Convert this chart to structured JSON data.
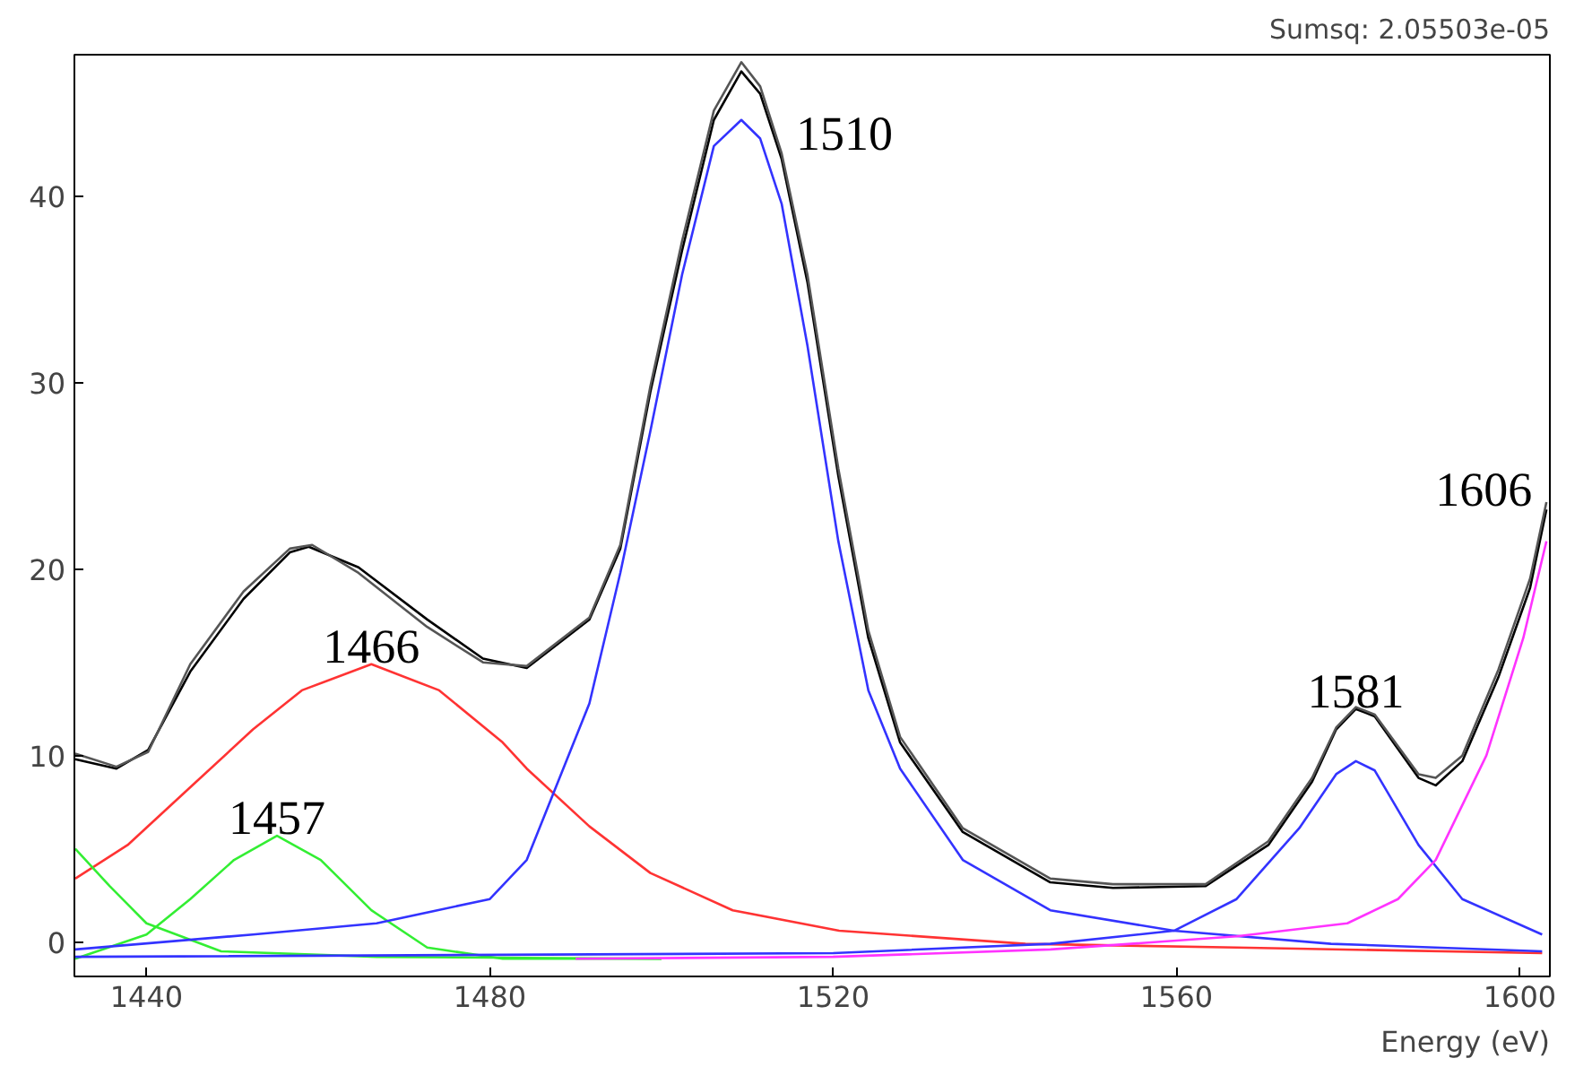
{
  "chart_data": {
    "type": "line",
    "title": "Sumsq: 2.05503e-05",
    "xlabel": "Energy (eV)",
    "xlim": [
      1431.6,
      1603.5
    ],
    "ylim": [
      -1.85,
      47.6
    ],
    "xticks": [
      1440,
      1480,
      1520,
      1560,
      1600
    ],
    "yticks": [
      0,
      10,
      20,
      30,
      40
    ],
    "grid": false,
    "marker": "none",
    "line_style": "solid",
    "series": [
      {
        "color": "#000000",
        "x": [
          1431.7,
          1436.5,
          1440.2,
          1445.1,
          1451.3,
          1456.7,
          1458.9,
          1464.7,
          1472.7,
          1479.2,
          1484.3,
          1491.6,
          1495.2,
          1498.7,
          1502.4,
          1506.1,
          1509.3,
          1511.5,
          1514,
          1517,
          1520.6,
          1524.1,
          1527.8,
          1535.1,
          1545.3,
          1552.6,
          1563.4,
          1570.7,
          1575.8,
          1578.6,
          1580.9,
          1583.1,
          1588.2,
          1590.2,
          1593.3,
          1597.5,
          1601.2,
          1603.1
        ],
        "values": [
          9.8,
          9.3,
          10.3,
          14.5,
          18.4,
          20.9,
          21.2,
          20.1,
          17.3,
          15.2,
          14.7,
          17.3,
          21.1,
          29.5,
          37.1,
          44.1,
          46.7,
          45.5,
          42.0,
          35.4,
          25.0,
          16.3,
          10.7,
          5.9,
          3.2,
          2.9,
          3.0,
          5.2,
          8.6,
          11.4,
          12.5,
          12.1,
          8.8,
          8.4,
          9.7,
          14.2,
          19.0,
          23.2
        ]
      },
      {
        "color": "#555555",
        "x": [
          1431.7,
          1436.5,
          1440.2,
          1445.1,
          1451.3,
          1456.7,
          1459.3,
          1464.7,
          1472.7,
          1479.2,
          1484.3,
          1491.6,
          1495.2,
          1498.7,
          1502.4,
          1506.1,
          1509.3,
          1511.5,
          1514,
          1517,
          1520.6,
          1524.1,
          1527.8,
          1535.1,
          1545.3,
          1552.6,
          1563.4,
          1570.7,
          1575.8,
          1578.6,
          1580.9,
          1583.1,
          1588.2,
          1590.2,
          1593.3,
          1597.5,
          1601.2,
          1603.1
        ],
        "values": [
          10.1,
          9.4,
          10.2,
          14.9,
          18.8,
          21.1,
          21.3,
          19.8,
          16.9,
          15.0,
          14.8,
          17.4,
          21.3,
          29.8,
          37.6,
          44.6,
          47.2,
          45.9,
          42.3,
          35.8,
          25.4,
          16.7,
          11.0,
          6.1,
          3.4,
          3.1,
          3.1,
          5.4,
          8.8,
          11.5,
          12.6,
          12.2,
          9.0,
          8.8,
          10.0,
          14.6,
          19.5,
          23.6
        ]
      },
      {
        "color": "#ff3333",
        "x": [
          1431.7,
          1437.8,
          1445.1,
          1452.4,
          1458.1,
          1466.2,
          1474.1,
          1481.5,
          1484.3,
          1491.6,
          1498.7,
          1508.3,
          1520.7,
          1542.4,
          1567,
          1602.6
        ],
        "values": [
          3.4,
          5.2,
          8.3,
          11.4,
          13.5,
          14.9,
          13.5,
          10.7,
          9.3,
          6.2,
          3.7,
          1.7,
          0.6,
          -0.1,
          -0.3,
          -0.6
        ]
      },
      {
        "color": "#33ee33",
        "x": [
          1431.7,
          1435.7,
          1440,
          1448.7,
          1466.8,
          1500
        ],
        "values": [
          5.0,
          3.0,
          1.0,
          -0.5,
          -0.8,
          -0.9
        ]
      },
      {
        "color": "#33ee33",
        "x": [
          1431.7,
          1440,
          1445.1,
          1450.2,
          1455.2,
          1460.3,
          1466.2,
          1472.7,
          1481.5,
          1500
        ],
        "values": [
          -0.9,
          0.4,
          2.3,
          4.4,
          5.7,
          4.4,
          1.7,
          -0.3,
          -0.9,
          -0.9
        ]
      },
      {
        "color": "#3333ff",
        "x": [
          1431.7,
          1452.4,
          1466.8,
          1480,
          1484.3,
          1491.6,
          1495.2,
          1498.7,
          1502.4,
          1506.1,
          1509.3,
          1511.5,
          1514,
          1517,
          1520.6,
          1524.1,
          1527.8,
          1535.1,
          1545.3,
          1559.7,
          1578,
          1602.6
        ],
        "values": [
          -0.4,
          0.4,
          1.0,
          2.3,
          4.4,
          12.8,
          19.8,
          27.4,
          35.8,
          42.7,
          44.1,
          43.1,
          39.6,
          32.0,
          21.5,
          13.5,
          9.3,
          4.4,
          1.7,
          0.6,
          -0.1,
          -0.5
        ]
      },
      {
        "color": "#3333ff",
        "x": [
          1431.7,
          1520,
          1545.3,
          1559.7,
          1567,
          1574.3,
          1578.6,
          1580.9,
          1583.1,
          1588.2,
          1593.3,
          1602.6
        ],
        "values": [
          -0.8,
          -0.6,
          -0.1,
          0.6,
          2.3,
          6.1,
          9.0,
          9.7,
          9.2,
          5.2,
          2.3,
          0.4
        ]
      },
      {
        "color": "#ff33ff",
        "x": [
          1490,
          1520,
          1545.3,
          1567,
          1579.9,
          1585.8,
          1590.2,
          1596.1,
          1600.4,
          1603.1
        ],
        "values": [
          -0.9,
          -0.8,
          -0.4,
          0.3,
          1.0,
          2.3,
          4.4,
          10.0,
          16.3,
          21.5
        ]
      }
    ],
    "annotations": [
      {
        "text": "1466",
        "x": 1466.2,
        "y": 14.9
      },
      {
        "text": "1457",
        "x": 1455.2,
        "y": 5.7
      },
      {
        "text": "1510",
        "x": 1514,
        "y": 42.0
      },
      {
        "text": "1581",
        "x": 1580.9,
        "y": 12.5
      },
      {
        "text": "1606",
        "x": 1603.1,
        "y": 23.2
      }
    ]
  }
}
